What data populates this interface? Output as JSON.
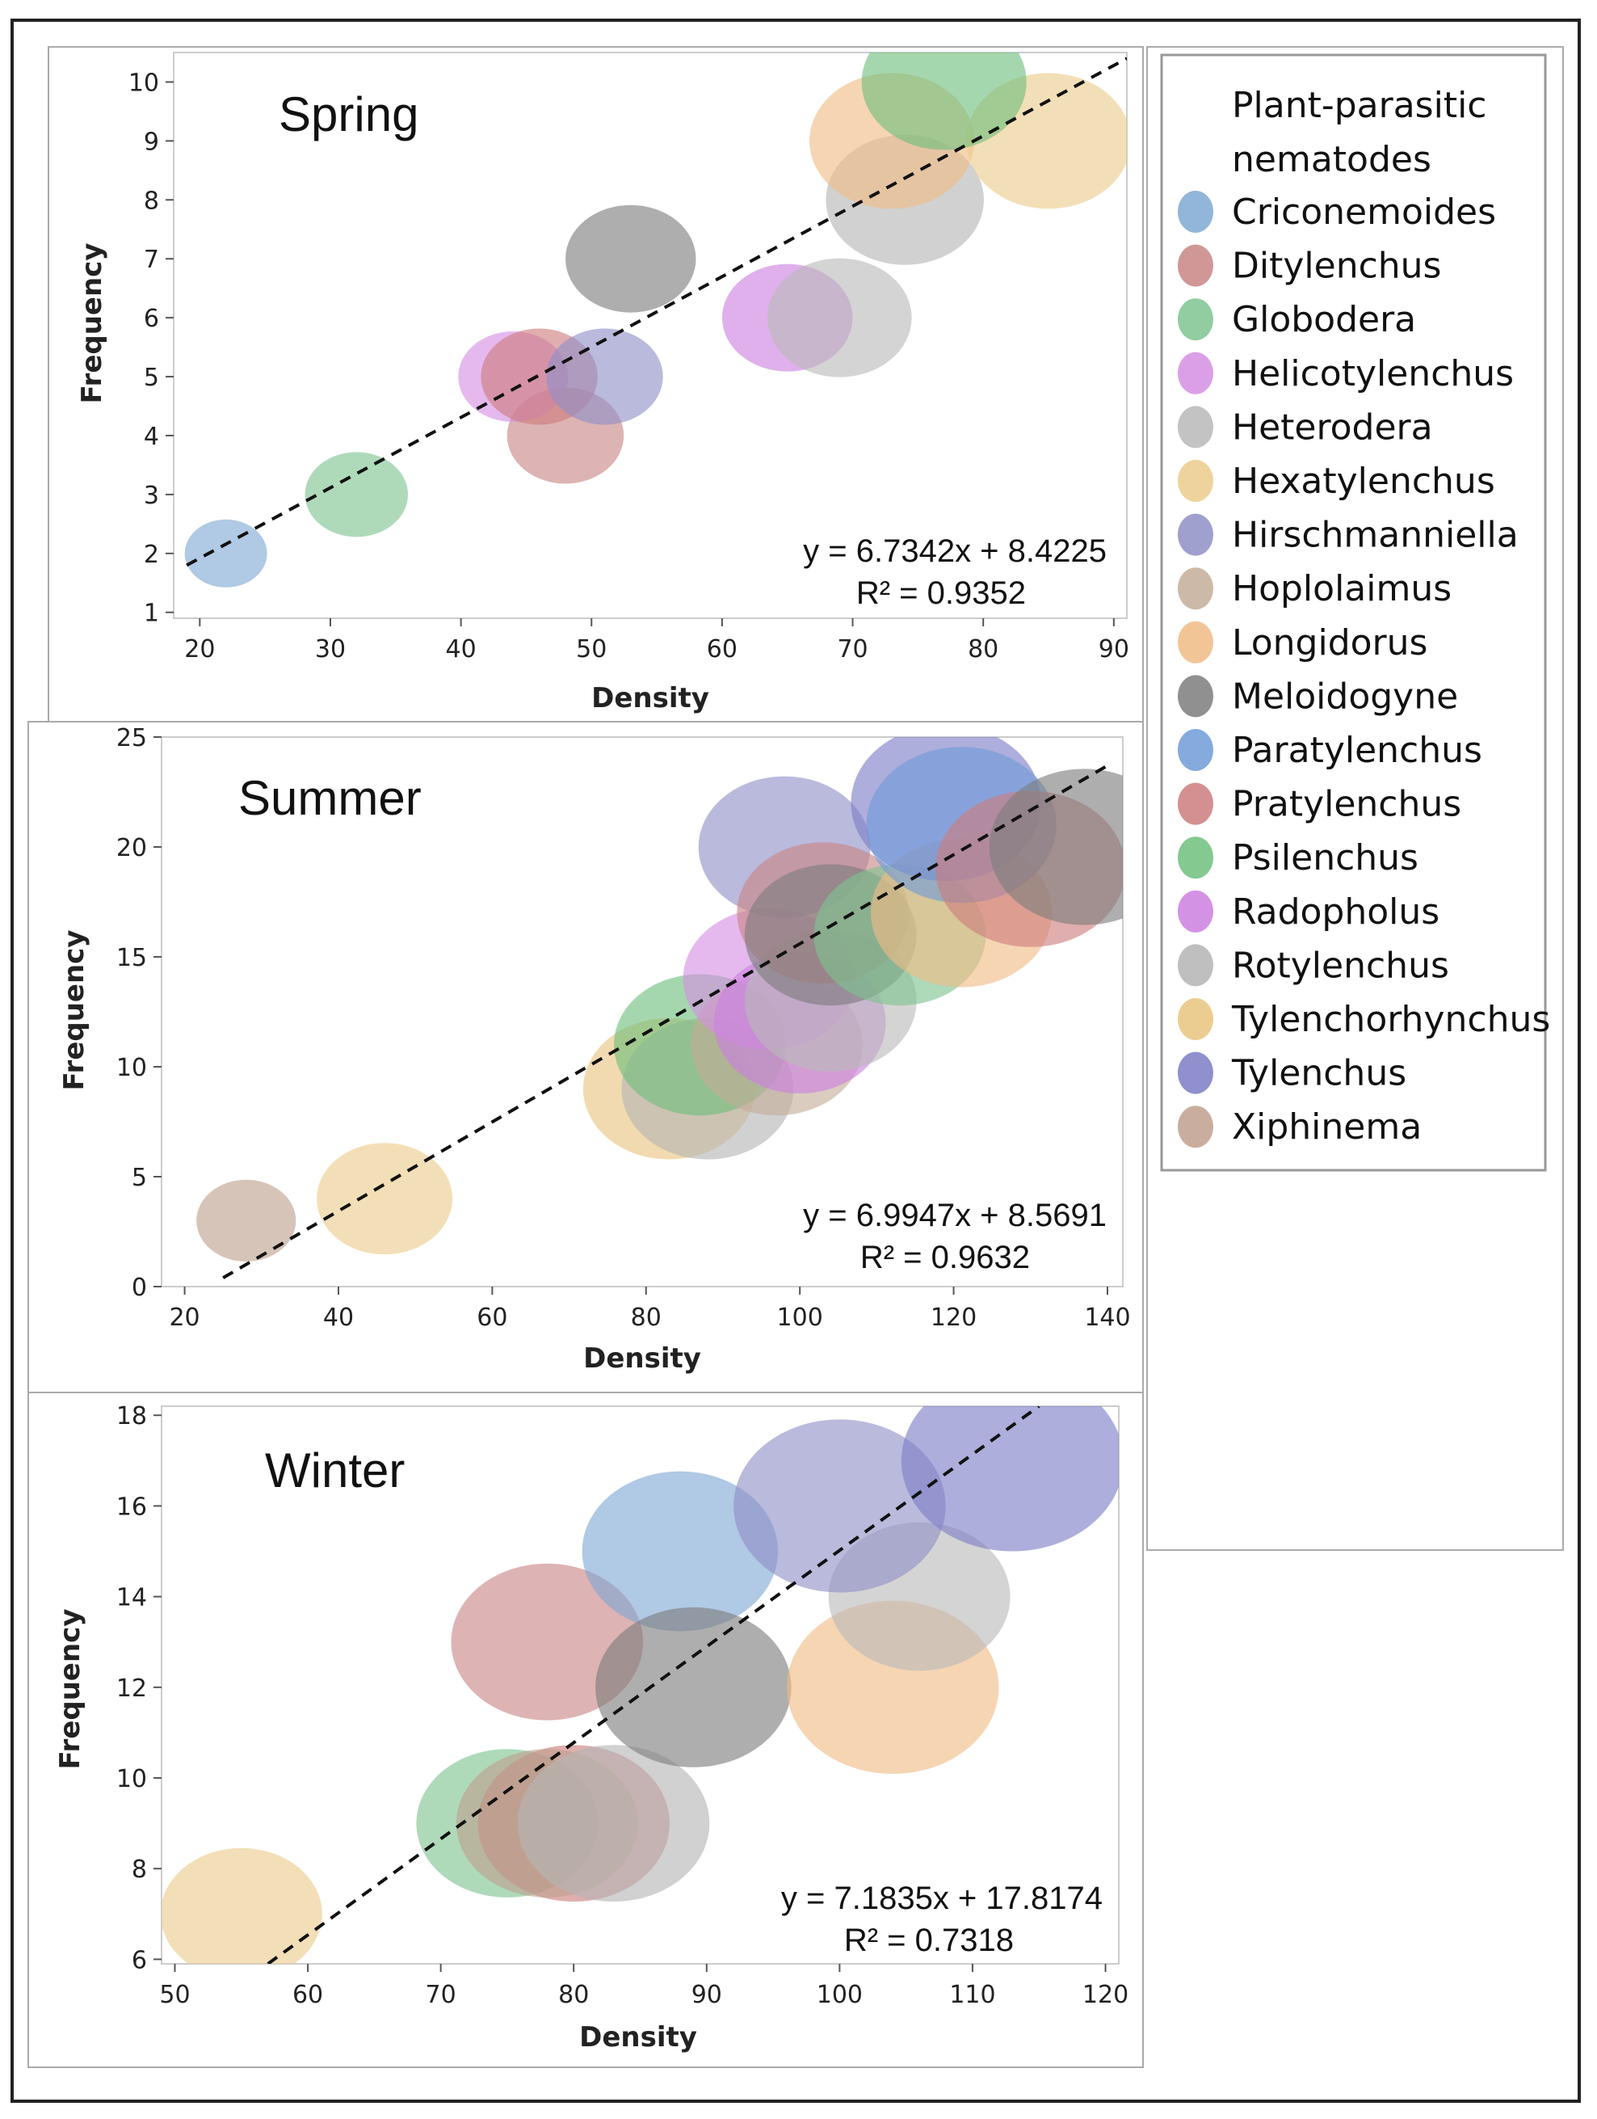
{
  "colors": {
    "Criconemoides": "#7fa8d4",
    "Ditylenchus": "#c98585",
    "Globodera": "#7ec48f",
    "Helicotylenchus": "#d58ee3",
    "Heterodera": "#b9b9b9",
    "Hexatylenchus": "#eccb8b",
    "Hirschmanniella": "#8f8fc7",
    "Hoplolaimus": "#c4ad98",
    "Longidorus": "#f0bb85",
    "Meloidogyne": "#7d7d7d",
    "Paratylenchus": "#6f9bd8",
    "Pratylenchus": "#cd7d7d",
    "Psilenchus": "#6dbf7d",
    "Radopholus": "#cc7fe0",
    "Rotylenchus": "#b4b4b4",
    "Tylenchorhynchus": "#e9c47e",
    "Tylenchus": "#7c7cc6",
    "Xiphinema": "#bfa08e"
  },
  "legend": {
    "title_line1": "Plant-parasitic",
    "title_line2": "nematodes",
    "items": [
      "Criconemoides",
      "Ditylenchus",
      "Globodera",
      "Helicotylenchus",
      "Heterodera",
      "Hexatylenchus",
      "Hirschmanniella",
      "Hoplolaimus",
      "Longidorus",
      "Meloidogyne",
      "Paratylenchus",
      "Pratylenchus",
      "Psilenchus",
      "Radopholus",
      "Rotylenchus",
      "Tylenchorhynchus",
      "Tylenchus",
      "Xiphinema"
    ]
  },
  "chart_data": [
    {
      "type": "scatter",
      "title": "Spring",
      "xlabel": "Density",
      "ylabel": "Frequency",
      "xlim": [
        18,
        91
      ],
      "ylim": [
        0.9,
        10.5
      ],
      "xticks": [
        20,
        30,
        40,
        50,
        60,
        70,
        80,
        90
      ],
      "yticks": [
        1,
        2,
        3,
        4,
        5,
        6,
        7,
        8,
        9,
        10
      ],
      "trendline": {
        "x": [
          19,
          91
        ],
        "y": [
          1.8,
          10.4
        ]
      },
      "equation": "y = 6.7342x + 8.4225",
      "r2": "R² = 0.9352",
      "points": [
        {
          "species": "Criconemoides",
          "x": 22,
          "y": 2,
          "size": 0.6
        },
        {
          "species": "Globodera",
          "x": 32,
          "y": 3,
          "size": 0.75
        },
        {
          "species": "Ditylenchus",
          "x": 48,
          "y": 4,
          "size": 0.85
        },
        {
          "species": "Helicotylenchus",
          "x": 44,
          "y": 5,
          "size": 0.8
        },
        {
          "species": "Pratylenchus",
          "x": 46,
          "y": 5,
          "size": 0.85
        },
        {
          "species": "Hirschmanniella",
          "x": 51,
          "y": 5,
          "size": 0.85
        },
        {
          "species": "Meloidogyne",
          "x": 53,
          "y": 7,
          "size": 0.95
        },
        {
          "species": "Radopholus",
          "x": 65,
          "y": 6,
          "size": 0.95
        },
        {
          "species": "Heterodera",
          "x": 69,
          "y": 6,
          "size": 1.05
        },
        {
          "species": "Rotylenchus",
          "x": 74,
          "y": 8,
          "size": 1.15
        },
        {
          "species": "Longidorus",
          "x": 73,
          "y": 9,
          "size": 1.2
        },
        {
          "species": "Hexatylenchus",
          "x": 85,
          "y": 9,
          "size": 1.2
        },
        {
          "species": "Psilenchus",
          "x": 77,
          "y": 10,
          "size": 1.2
        }
      ]
    },
    {
      "type": "scatter",
      "title": "Summer",
      "xlabel": "Density",
      "ylabel": "Frequency",
      "xlim": [
        17,
        142
      ],
      "ylim": [
        0,
        25
      ],
      "xticks": [
        20,
        40,
        60,
        80,
        100,
        120,
        140
      ],
      "yticks": [
        0,
        5,
        10,
        15,
        20,
        25
      ],
      "trendline": {
        "x": [
          25,
          140
        ],
        "y": [
          0.4,
          23.7
        ]
      },
      "equation": "y = 6.9947x + 8.5691",
      "r2": "R² = 0.9632",
      "points": [
        {
          "species": "Xiphinema",
          "x": 28,
          "y": 3,
          "size": 0.55
        },
        {
          "species": "Hexatylenchus",
          "x": 46,
          "y": 4,
          "size": 0.75
        },
        {
          "species": "Tylenchorhynchus",
          "x": 83,
          "y": 9,
          "size": 0.95
        },
        {
          "species": "Rotylenchus",
          "x": 88,
          "y": 9,
          "size": 0.95
        },
        {
          "species": "Psilenchus",
          "x": 87,
          "y": 11,
          "size": 0.95
        },
        {
          "species": "Hoplolaimus",
          "x": 97,
          "y": 11,
          "size": 0.95
        },
        {
          "species": "Helicotylenchus",
          "x": 96,
          "y": 14,
          "size": 0.95
        },
        {
          "species": "Radopholus",
          "x": 100,
          "y": 12,
          "size": 0.95
        },
        {
          "species": "Heterodera",
          "x": 104,
          "y": 13,
          "size": 0.95
        },
        {
          "species": "Hirschmanniella",
          "x": 98,
          "y": 20,
          "size": 0.95
        },
        {
          "species": "Ditylenchus",
          "x": 103,
          "y": 17,
          "size": 0.95
        },
        {
          "species": "Meloidogyne",
          "x": 104,
          "y": 16,
          "size": 0.95
        },
        {
          "species": "Globodera",
          "x": 113,
          "y": 16,
          "size": 0.95
        },
        {
          "species": "Longidorus",
          "x": 121,
          "y": 17,
          "size": 1.0
        },
        {
          "species": "Tylenchus",
          "x": 119,
          "y": 22,
          "size": 1.05
        },
        {
          "species": "Paratylenchus",
          "x": 121,
          "y": 21,
          "size": 1.05
        },
        {
          "species": "Pratylenchus",
          "x": 130,
          "y": 19,
          "size": 1.05
        },
        {
          "species": "Meloidogyne",
          "x": 137,
          "y": 20,
          "size": 1.05
        }
      ]
    },
    {
      "type": "scatter",
      "title": "Winter",
      "xlabel": "Density",
      "ylabel": "Frequency",
      "xlim": [
        49,
        121
      ],
      "ylim": [
        5.9,
        18.2
      ],
      "xticks": [
        50,
        60,
        70,
        80,
        90,
        100,
        110,
        120
      ],
      "yticks": [
        6,
        8,
        10,
        12,
        14,
        16,
        18
      ],
      "trendline": {
        "x": [
          57,
          115
        ],
        "y": [
          5.9,
          18.2
        ]
      },
      "equation": "y = 7.1835x + 17.8174",
      "r2": "R² = 0.7318",
      "points": [
        {
          "species": "Hexatylenchus",
          "x": 55,
          "y": 7,
          "size": 0.8
        },
        {
          "species": "Globodera",
          "x": 75,
          "y": 9,
          "size": 0.9
        },
        {
          "species": "Pratylenchus",
          "x": 80,
          "y": 9,
          "size": 0.95
        },
        {
          "species": "Xiphinema",
          "x": 78,
          "y": 9,
          "size": 0.9
        },
        {
          "species": "Rotylenchus",
          "x": 83,
          "y": 9,
          "size": 0.95
        },
        {
          "species": "Ditylenchus",
          "x": 78,
          "y": 13,
          "size": 0.95
        },
        {
          "species": "Criconemoides",
          "x": 88,
          "y": 15,
          "size": 0.97
        },
        {
          "species": "Meloidogyne",
          "x": 89,
          "y": 12,
          "size": 0.97
        },
        {
          "species": "Longidorus",
          "x": 104,
          "y": 12,
          "size": 1.05
        },
        {
          "species": "Heterodera",
          "x": 106,
          "y": 14,
          "size": 0.9
        },
        {
          "species": "Hirschmanniella",
          "x": 100,
          "y": 16,
          "size": 1.05
        },
        {
          "species": "Tylenchus",
          "x": 113,
          "y": 17,
          "size": 1.1
        }
      ]
    }
  ]
}
